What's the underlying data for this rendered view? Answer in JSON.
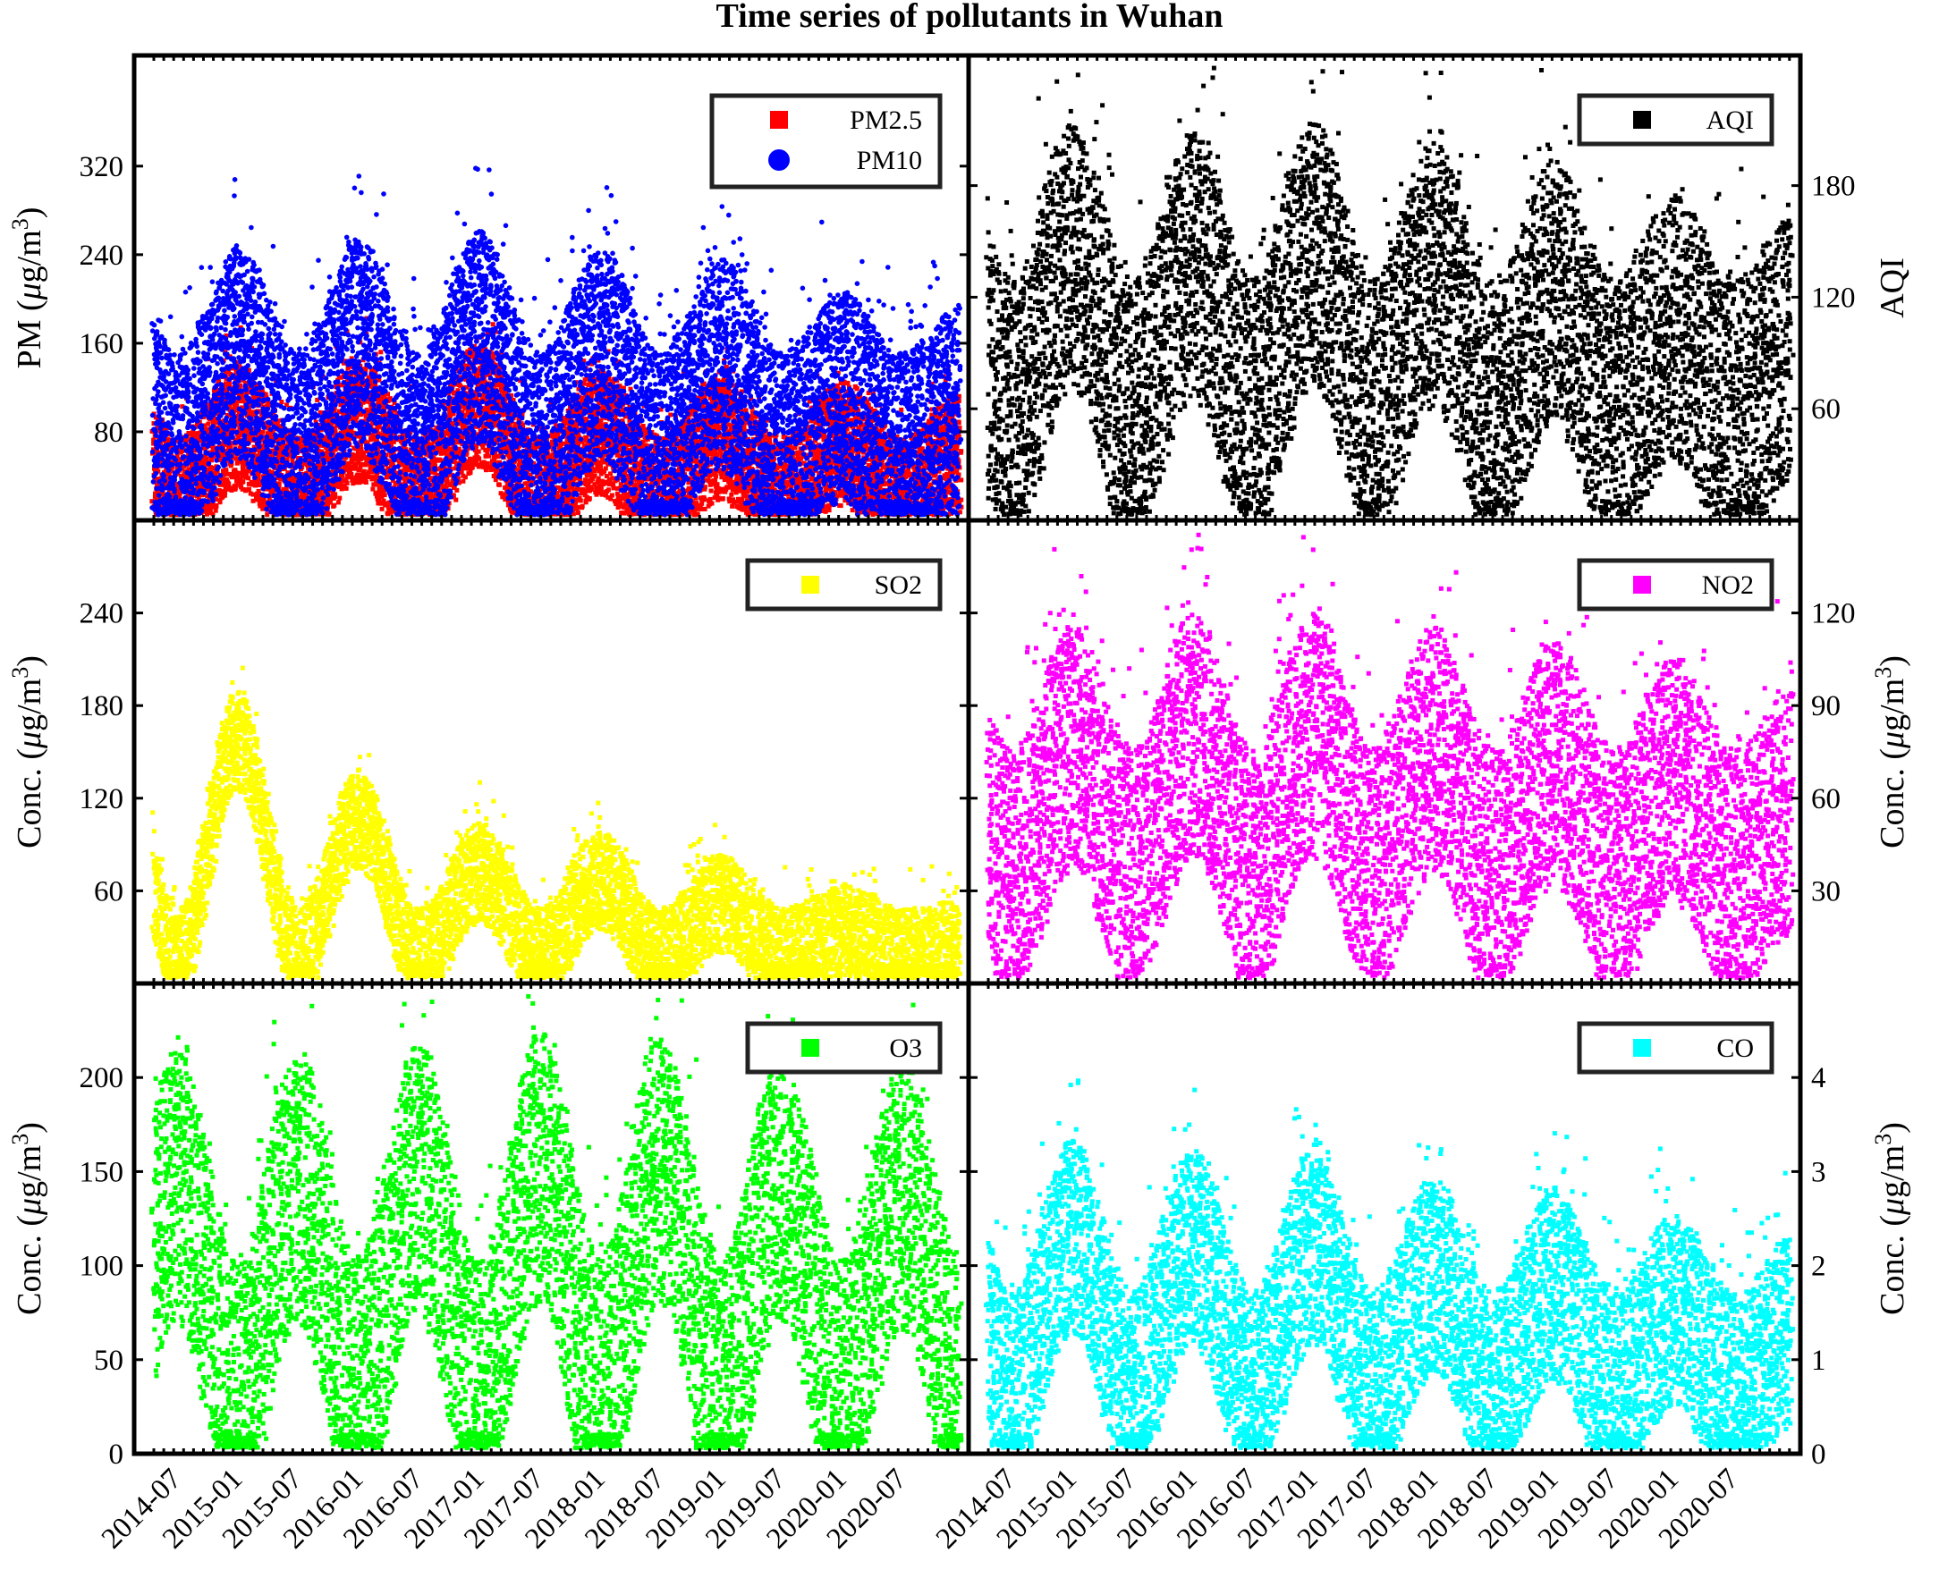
{
  "title": "Time series of pollutants in Wuhan",
  "x_tick_labels": [
    "2014-07",
    "2015-01",
    "2015-07",
    "2016-01",
    "2016-07",
    "2017-01",
    "2017-07",
    "2018-01",
    "2018-07",
    "2019-01",
    "2019-07",
    "2020-01",
    "2020-07"
  ],
  "chart_data": [
    {
      "id": "pm",
      "type": "scatter",
      "x_range": [
        "2014-05-01",
        "2020-12-31"
      ],
      "ylabel": "PM (μg/m3)",
      "ylim": [
        0,
        420
      ],
      "y_ticks": [
        80,
        160,
        240,
        320
      ],
      "y_axis_side": "left",
      "legend_position": "top-right",
      "grid": false,
      "series": [
        {
          "name": "PM2.5",
          "marker": "square",
          "color": "#ff0000",
          "seasonal_profile": {
            "winter_peak": [
              90,
              95,
              110,
              85,
              80,
              75,
              65
            ],
            "summer_low": 25,
            "spread": 70
          }
        },
        {
          "name": "PM10",
          "marker": "circle",
          "color": "#0000ff",
          "seasonal_profile": {
            "winter_peak": [
              160,
              170,
              175,
              160,
              150,
              120,
              110
            ],
            "summer_low": 65,
            "spread": 120
          }
        }
      ]
    },
    {
      "id": "aqi",
      "type": "scatter",
      "x_range": [
        "2014-05-01",
        "2020-12-31"
      ],
      "ylabel": "AQI",
      "ylim": [
        0,
        250
      ],
      "y_ticks": [
        60,
        120,
        180
      ],
      "y_axis_side": "right",
      "legend_position": "top-right",
      "grid": false,
      "series": [
        {
          "name": "AQI",
          "marker": "square",
          "color": "#000000",
          "seasonal_profile": {
            "winter_peak": [
              150,
              145,
              150,
              140,
              130,
              110,
              100
            ],
            "summer_low": 65,
            "spread": 90
          }
        }
      ]
    },
    {
      "id": "so2",
      "type": "scatter",
      "x_range": [
        "2014-05-01",
        "2020-12-31"
      ],
      "ylabel": "Conc. (μg/m3)",
      "ylim": [
        0,
        300
      ],
      "y_ticks": [
        60,
        120,
        180,
        240
      ],
      "y_axis_side": "left",
      "legend_position": "top-right",
      "grid": false,
      "series": [
        {
          "name": "SO2",
          "marker": "square",
          "color": "#ffff00",
          "seasonal_profile": {
            "winter_peak": [
              160,
              110,
              75,
              70,
              55,
              35,
              25
            ],
            "summer_low": 20,
            "spread": 40
          }
        }
      ]
    },
    {
      "id": "no2",
      "type": "scatter",
      "x_range": [
        "2014-05-01",
        "2020-12-31"
      ],
      "ylabel": "Conc. (μg/m3)",
      "ylim": [
        0,
        150
      ],
      "y_ticks": [
        30,
        60,
        90,
        120
      ],
      "y_axis_side": "right",
      "legend_position": "top-right",
      "grid": false,
      "series": [
        {
          "name": "NO2",
          "marker": "square",
          "color": "#ff00ff",
          "seasonal_profile": {
            "winter_peak": [
              80,
              85,
              85,
              80,
              75,
              70,
              60
            ],
            "summer_low": 40,
            "spread": 50
          }
        }
      ]
    },
    {
      "id": "o3",
      "type": "scatter",
      "x_range": [
        "2014-05-01",
        "2020-12-31"
      ],
      "ylabel": "Conc. (μg/m3)",
      "ylim": [
        0,
        250
      ],
      "y_ticks": [
        0,
        50,
        100,
        150,
        200
      ],
      "y_axis_side": "left",
      "legend_position": "top-right",
      "grid": false,
      "series": [
        {
          "name": "O3",
          "marker": "square",
          "color": "#00ff00",
          "seasonal_profile": {
            "summer_peak": [
              150,
              150,
              155,
              160,
              160,
              150,
              145
            ],
            "winter_low": 40,
            "spread": 90
          }
        }
      ]
    },
    {
      "id": "co",
      "type": "scatter",
      "x_range": [
        "2014-05-01",
        "2020-12-31"
      ],
      "ylabel": "Conc. (μg/m3)",
      "ylim": [
        0,
        5
      ],
      "y_ticks": [
        0,
        1,
        2,
        3,
        4
      ],
      "y_axis_side": "right",
      "legend_position": "top-right",
      "grid": false,
      "series": [
        {
          "name": "CO",
          "marker": "square",
          "color": "#00ffff",
          "seasonal_profile": {
            "winter_peak": [
              2.4,
              2.3,
              2.3,
              2.0,
              1.9,
              1.6,
              1.4
            ],
            "summer_low": 0.8,
            "spread": 1.3
          }
        }
      ]
    }
  ]
}
